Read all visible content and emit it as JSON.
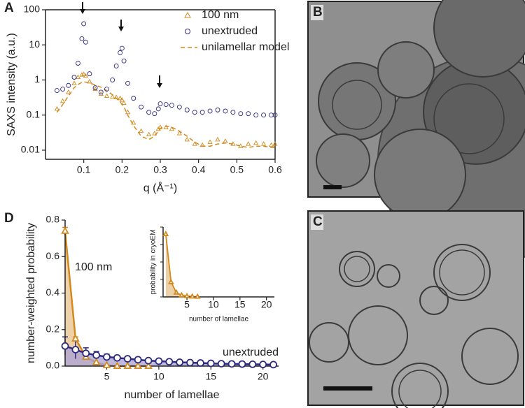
{
  "chart_data": [
    {
      "type": "scatter",
      "panel": "A",
      "ylabel": "SAXS intensity (a.u.)",
      "xlabel": "q (Å⁻¹)",
      "yscale": "log",
      "frame": "box",
      "legend": "upper right",
      "xlim": [
        0,
        0.6
      ],
      "xticks": [
        0.1,
        0.2,
        0.3,
        0.4,
        0.5,
        0.6
      ],
      "ylim": [
        0.0055,
        100
      ],
      "yticks": [
        0.01,
        0.1,
        1,
        10,
        100
      ],
      "x": [
        0.03,
        0.045,
        0.06,
        0.075,
        0.085,
        0.095,
        0.1,
        0.105,
        0.115,
        0.13,
        0.145,
        0.16,
        0.175,
        0.185,
        0.195,
        0.2,
        0.205,
        0.215,
        0.23,
        0.25,
        0.27,
        0.285,
        0.295,
        0.3,
        0.315,
        0.33,
        0.35,
        0.37,
        0.39,
        0.41,
        0.43,
        0.45,
        0.47,
        0.49,
        0.51,
        0.53,
        0.55,
        0.57,
        0.59,
        0.6
      ],
      "series": [
        {
          "name": "100 nm",
          "color": "#d4891c",
          "style": "triangle",
          "values": [
            0.15,
            0.25,
            0.45,
            0.8,
            1.2,
            1.4,
            1.45,
            1.3,
            0.9,
            0.55,
            0.4,
            0.35,
            0.33,
            0.32,
            0.3,
            0.27,
            0.22,
            0.12,
            0.06,
            0.035,
            0.028,
            0.03,
            0.04,
            0.045,
            0.045,
            0.04,
            0.03,
            0.02,
            0.015,
            0.014,
            0.017,
            0.02,
            0.018,
            0.015,
            0.013,
            0.015,
            0.016,
            0.015,
            0.014,
            0.015
          ]
        },
        {
          "name": "unextruded",
          "color": "#2e2a7e",
          "style": "circle",
          "values": [
            0.5,
            0.55,
            0.7,
            1.2,
            3,
            15,
            40,
            12,
            1.5,
            0.6,
            0.45,
            0.55,
            1,
            2.5,
            6,
            8,
            3.5,
            0.8,
            0.3,
            0.17,
            0.12,
            0.11,
            0.15,
            0.21,
            0.2,
            0.19,
            0.17,
            0.14,
            0.12,
            0.12,
            0.13,
            0.14,
            0.13,
            0.12,
            0.11,
            0.11,
            0.1,
            0.1,
            0.1,
            0.1
          ]
        },
        {
          "name": "unilamellar model",
          "color": "#d4891c",
          "style": "dashed",
          "values": [
            0.12,
            0.2,
            0.35,
            0.6,
            0.75,
            0.85,
            0.88,
            0.87,
            0.82,
            0.72,
            0.62,
            0.5,
            0.38,
            0.3,
            0.24,
            0.2,
            0.17,
            0.1,
            0.05,
            0.025,
            0.02,
            0.025,
            0.035,
            0.042,
            0.048,
            0.045,
            0.035,
            0.025,
            0.017,
            0.013,
            0.013,
            0.015,
            0.016,
            0.015,
            0.013,
            0.012,
            0.013,
            0.013,
            0.012,
            0.012
          ]
        }
      ]
    },
    {
      "type": "line",
      "panel": "D",
      "ylabel": "number-weighted probability",
      "xlabel": "number of lamellae",
      "frame": "axes",
      "legend": "inline",
      "xlim": [
        1,
        21.5
      ],
      "xticks": [
        5,
        10,
        15,
        20
      ],
      "ylim": [
        0,
        0.8
      ],
      "yticks": [
        {
          "value": 0,
          "label": "0.0"
        },
        0.2,
        0.4,
        0.6,
        0.8
      ],
      "series": [
        {
          "name": "100 nm",
          "color": "#d4891c",
          "fill": "#e6c28c",
          "style": "triangle",
          "x": [
            1,
            2,
            3,
            4,
            5,
            6,
            7,
            8,
            9
          ],
          "values": [
            0.74,
            0.15,
            0.05,
            0.02,
            0.005,
            0,
            0,
            0,
            0
          ],
          "errors": [
            0.02,
            0.01,
            0,
            0,
            0,
            0,
            0,
            0,
            0
          ]
        },
        {
          "name": "unextruded",
          "color": "#2e2a7e",
          "fill": "#a9a1d6",
          "style": "circle",
          "x": [
            1,
            2,
            3,
            4,
            5,
            6,
            7,
            8,
            9,
            10,
            11,
            12,
            13,
            14,
            15,
            16,
            17,
            18,
            19,
            20,
            21
          ],
          "values": [
            0.11,
            0.09,
            0.07,
            0.06,
            0.05,
            0.045,
            0.04,
            0.035,
            0.03,
            0.027,
            0.024,
            0.021,
            0.019,
            0.017,
            0.015,
            0.013,
            0.012,
            0.011,
            0.01,
            0.009,
            0.008
          ],
          "errors": [
            0.05,
            0.05,
            0.03,
            0.02,
            0.015,
            0.01,
            0.008,
            0,
            0,
            0,
            0,
            0,
            0,
            0,
            0,
            0,
            0,
            0,
            0,
            0,
            0
          ]
        }
      ]
    },
    {
      "type": "line",
      "ylabel": "probability in cryoEM",
      "xlabel": "number of lamellae",
      "frame": "axes",
      "xlim": [
        0.5,
        21.5
      ],
      "xticks": [
        5,
        10,
        15,
        20
      ],
      "ylim": [
        0,
        0.8
      ],
      "series": [
        {
          "color": "#d4891c",
          "fill": "#e6c28c",
          "style": "triangle",
          "x": [
            1,
            2,
            3,
            4,
            5,
            6,
            7
          ],
          "values": [
            0.72,
            0.17,
            0.05,
            0.02,
            0.01,
            0.005,
            0.003
          ]
        }
      ]
    }
  ],
  "micrographs": [
    {
      "label": "B"
    },
    {
      "label": "C"
    }
  ]
}
